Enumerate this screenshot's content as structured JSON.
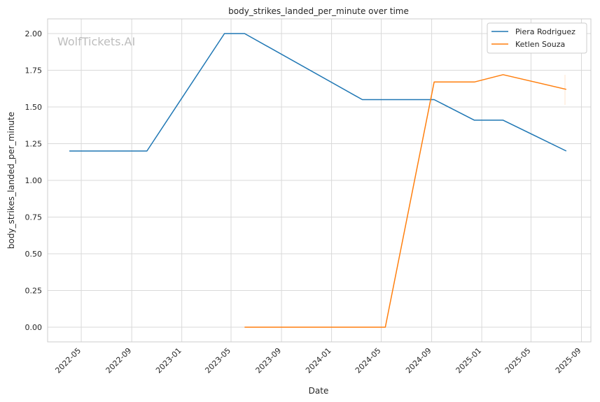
{
  "watermark": "WolfTickets.AI",
  "chart_data": {
    "type": "line",
    "title": "body_strikes_landed_per_minute over time",
    "xlabel": "Date",
    "ylabel": "body_strikes_landed_per_minute",
    "xlim": [
      "2022-02-08",
      "2025-09-24"
    ],
    "ylim": [
      -0.1,
      2.1
    ],
    "x_ticks": [
      "2022-05",
      "2022-09",
      "2023-01",
      "2023-05",
      "2023-09",
      "2024-01",
      "2024-05",
      "2024-09",
      "2025-01",
      "2025-05",
      "2025-09"
    ],
    "y_ticks": [
      "0.00",
      "0.25",
      "0.50",
      "0.75",
      "1.00",
      "1.25",
      "1.50",
      "1.75",
      "2.00"
    ],
    "grid": true,
    "legend_position": "top-right",
    "series": [
      {
        "name": "Piera Rodriguez",
        "color": "#1f77b4",
        "points": [
          [
            "2022-04-02",
            1.2
          ],
          [
            "2022-10-08",
            1.2
          ],
          [
            "2023-04-15",
            2.0
          ],
          [
            "2023-06-03",
            2.0
          ],
          [
            "2024-03-16",
            1.55
          ],
          [
            "2024-09-07",
            1.55
          ],
          [
            "2024-12-14",
            1.41
          ],
          [
            "2025-02-22",
            1.41
          ],
          [
            "2025-07-26",
            1.2
          ]
        ]
      },
      {
        "name": "Ketlen Souza",
        "color": "#ff7f0e",
        "points": [
          [
            "2023-06-03",
            0.0
          ],
          [
            "2024-05-11",
            0.0
          ],
          [
            "2024-09-07",
            1.67
          ],
          [
            "2024-12-14",
            1.67
          ],
          [
            "2025-02-22",
            1.72
          ],
          [
            "2025-07-26",
            1.62
          ]
        ]
      }
    ]
  }
}
